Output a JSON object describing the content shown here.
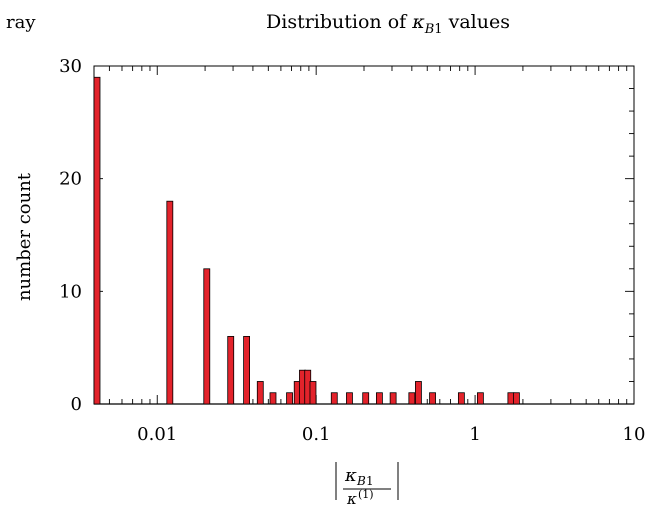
{
  "chart_data": {
    "type": "bar",
    "corner_text": "ray",
    "title": "Distribution of κ_B1 values",
    "ylabel": "number count",
    "xlabel": "|κ_B1 / κ^(1)|",
    "x_scale": "log",
    "xlim": [
      0.004,
      10
    ],
    "ylim": [
      0,
      30
    ],
    "x_ticks": [
      {
        "value": 0.01,
        "label": "0.01"
      },
      {
        "value": 0.1,
        "label": "0.1"
      },
      {
        "value": 1,
        "label": "1"
      },
      {
        "value": 10,
        "label": "10"
      }
    ],
    "y_ticks": [
      {
        "value": 0,
        "label": "0"
      },
      {
        "value": 10,
        "label": "10"
      },
      {
        "value": 20,
        "label": "20"
      },
      {
        "value": 30,
        "label": "30"
      }
    ],
    "bar_color": "#e3232b",
    "bar_edge_color": "#000000",
    "grid": false,
    "legend": "none",
    "bars": [
      {
        "x": 0.0041,
        "y": 29
      },
      {
        "x": 0.012,
        "y": 18
      },
      {
        "x": 0.0205,
        "y": 12
      },
      {
        "x": 0.029,
        "y": 6
      },
      {
        "x": 0.0365,
        "y": 6
      },
      {
        "x": 0.0445,
        "y": 2
      },
      {
        "x": 0.0535,
        "y": 1
      },
      {
        "x": 0.068,
        "y": 1
      },
      {
        "x": 0.076,
        "y": 2
      },
      {
        "x": 0.082,
        "y": 3
      },
      {
        "x": 0.0885,
        "y": 3
      },
      {
        "x": 0.0955,
        "y": 2
      },
      {
        "x": 0.13,
        "y": 1
      },
      {
        "x": 0.162,
        "y": 1
      },
      {
        "x": 0.205,
        "y": 1
      },
      {
        "x": 0.25,
        "y": 1
      },
      {
        "x": 0.305,
        "y": 1
      },
      {
        "x": 0.4,
        "y": 1
      },
      {
        "x": 0.44,
        "y": 2
      },
      {
        "x": 0.54,
        "y": 1
      },
      {
        "x": 0.82,
        "y": 1
      },
      {
        "x": 1.08,
        "y": 1
      },
      {
        "x": 1.68,
        "y": 1
      },
      {
        "x": 1.82,
        "y": 1
      }
    ]
  }
}
